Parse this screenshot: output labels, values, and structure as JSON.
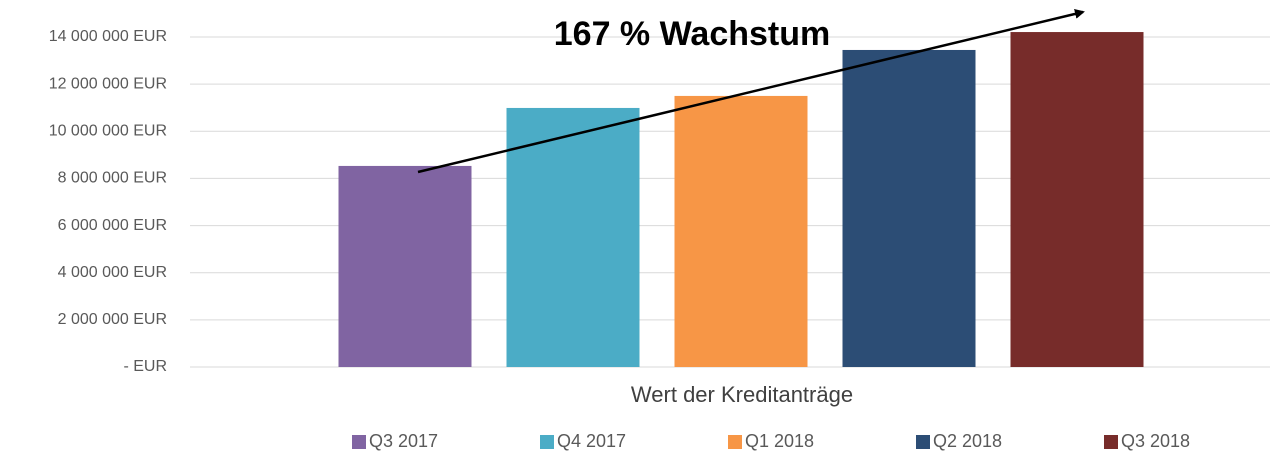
{
  "chart_data": {
    "type": "bar",
    "categories": [
      "Wert der Kreditanträge"
    ],
    "annotation": "167 % Wachstum",
    "series": [
      {
        "name": "Q3 2017",
        "color": "#8064a2",
        "values": [
          8530000
        ]
      },
      {
        "name": "Q4 2017",
        "color": "#4bacc6",
        "values": [
          10990000
        ]
      },
      {
        "name": "Q1 2018",
        "color": "#f79646",
        "values": [
          11500000
        ]
      },
      {
        "name": "Q2 2018",
        "color": "#2c4d75",
        "values": [
          13450000
        ]
      },
      {
        "name": "Q3 2018",
        "color": "#772c2a",
        "values": [
          14210000
        ]
      }
    ],
    "ylim": [
      0,
      15000000
    ],
    "yticks": [
      {
        "value": 0,
        "label": "- EUR"
      },
      {
        "value": 2000000,
        "label": "2 000 000 EUR"
      },
      {
        "value": 4000000,
        "label": "4 000 000 EUR"
      },
      {
        "value": 6000000,
        "label": "6 000 000 EUR"
      },
      {
        "value": 8000000,
        "label": "8 000 000 EUR"
      },
      {
        "value": 10000000,
        "label": "10 000 000 EUR"
      },
      {
        "value": 12000000,
        "label": "12 000 000 EUR"
      },
      {
        "value": 14000000,
        "label": "14 000 000 EUR"
      }
    ],
    "grid": true,
    "legend": "bottom"
  }
}
